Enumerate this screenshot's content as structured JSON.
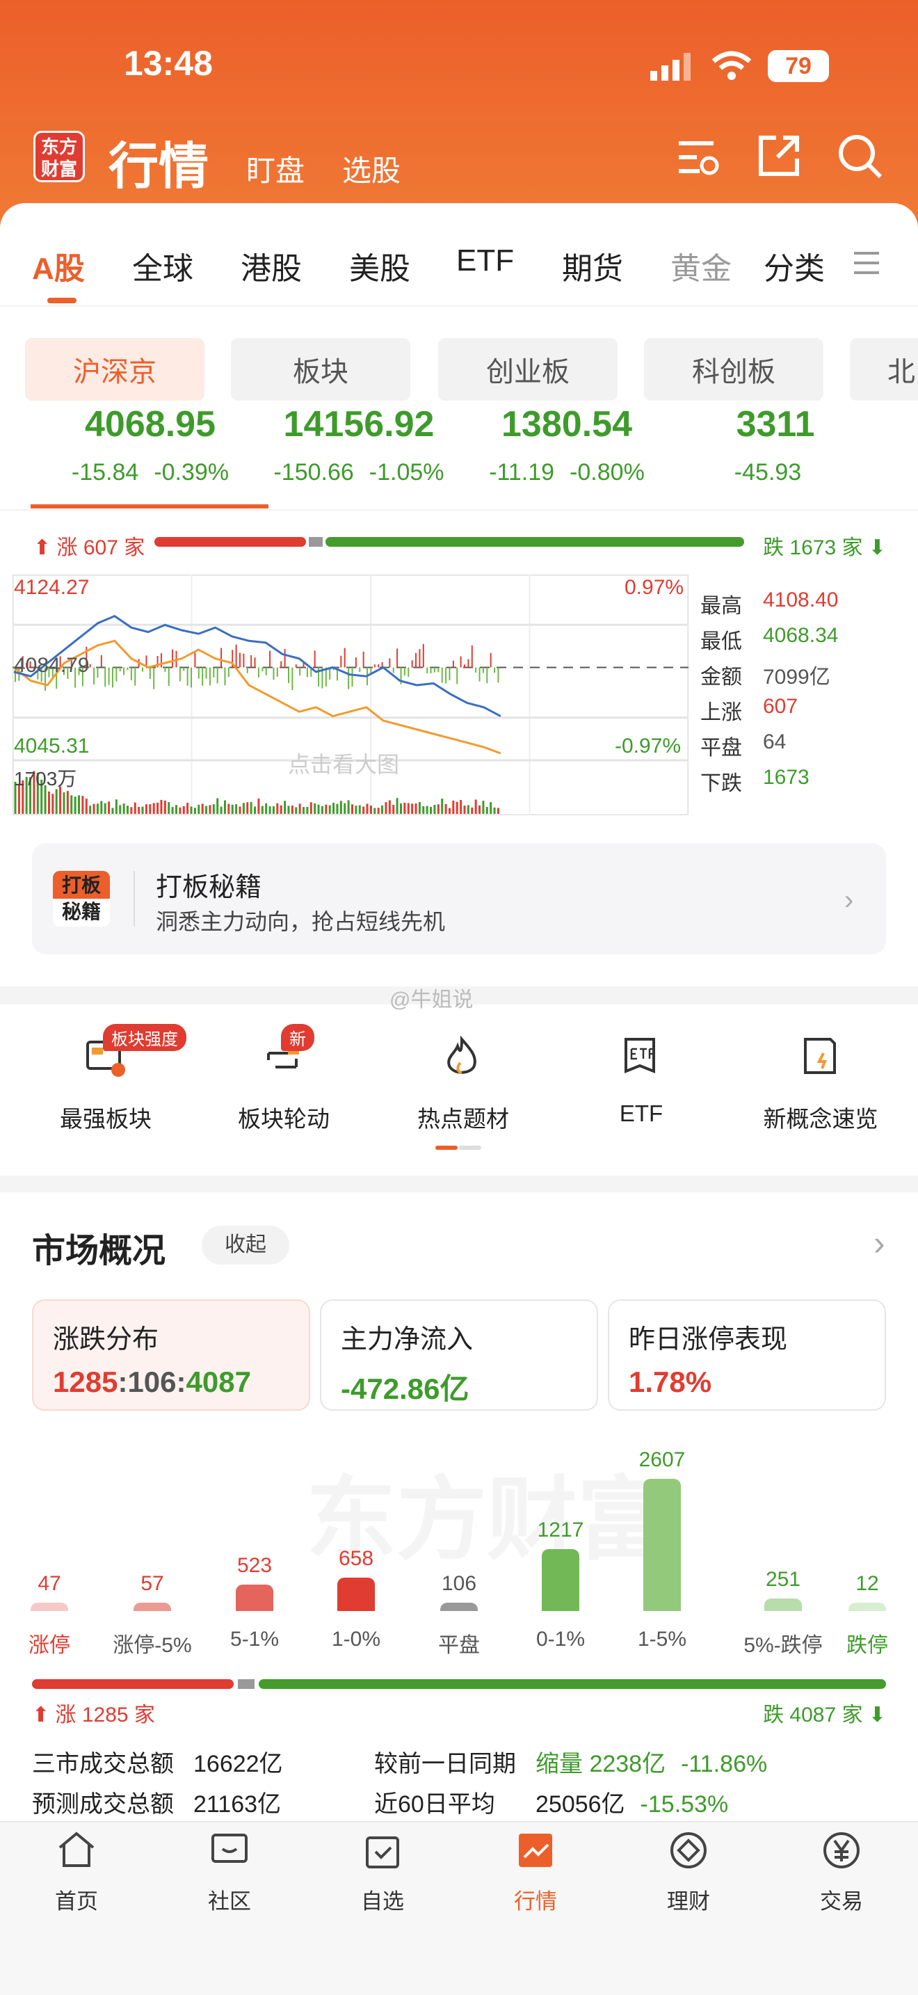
{
  "status": {
    "time": "13:48",
    "battery": "79"
  },
  "header": {
    "logo": "东方财富",
    "title": "行情",
    "tabs": [
      "盯盘",
      "选股"
    ]
  },
  "market_tabs": [
    "A股",
    "全球",
    "港股",
    "美股",
    "ETF",
    "期货",
    "黄金",
    "分类"
  ],
  "index_pills": [
    "沪深京",
    "板块",
    "创业板",
    "科创板",
    "北"
  ],
  "indices": [
    {
      "value": "4068.95",
      "change": "-15.84",
      "pct": "-0.39%"
    },
    {
      "value": "14156.92",
      "change": "-150.66",
      "pct": "-1.05%"
    },
    {
      "value": "1380.54",
      "change": "-11.19",
      "pct": "-0.80%"
    },
    {
      "value": "3311",
      "change": "-45.93",
      "pct": ""
    }
  ],
  "breadth": {
    "up": "涨 607 家",
    "down": "跌 1673 家",
    "up_n": 607,
    "flat_n": 64,
    "down_n": 1673
  },
  "intraday": {
    "high_label": "4124.27",
    "low_label": "4045.31",
    "prev_close": "4084.79",
    "pct_up": "0.97%",
    "pct_down": "-0.97%",
    "volume_label": "1703万",
    "watermark": "点击看大图",
    "index_pct": [
      -0.05,
      -0.1,
      0.05,
      0.2,
      0.35,
      0.5,
      0.58,
      0.45,
      0.4,
      0.48,
      0.42,
      0.38,
      0.45,
      0.35,
      0.3,
      0.28,
      0.15,
      0.1,
      -0.05,
      0,
      -0.08,
      -0.1,
      0,
      -0.15,
      -0.2,
      -0.18,
      -0.3,
      -0.4,
      -0.45,
      -0.55
    ],
    "equal_pct": [
      0,
      -0.15,
      -0.2,
      0.05,
      0.15,
      0.25,
      0.3,
      0.1,
      0,
      0.05,
      0.1,
      0.2,
      0.1,
      0.05,
      -0.2,
      -0.3,
      -0.4,
      -0.5,
      -0.45,
      -0.55,
      -0.5,
      -0.45,
      -0.6,
      -0.65,
      -0.7,
      -0.75,
      -0.8,
      -0.85,
      -0.9,
      -0.97
    ]
  },
  "stats": [
    {
      "label": "最高",
      "value": "4108.40",
      "color": "red"
    },
    {
      "label": "最低",
      "value": "4068.34",
      "color": "green"
    },
    {
      "label": "金额",
      "value": "7099亿",
      "color": "gray"
    },
    {
      "label": "上涨",
      "value": "607",
      "color": "red"
    },
    {
      "label": "平盘",
      "value": "64",
      "color": "gray"
    },
    {
      "label": "下跌",
      "value": "1673",
      "color": "green"
    }
  ],
  "promo": {
    "badge": "打板秘籍",
    "title": "打板秘籍",
    "subtitle": "洞悉主力动向，抢占短线先机"
  },
  "watermark": "@牛姐说",
  "shortcuts": [
    {
      "label": "最强板块",
      "badge": "板块强度"
    },
    {
      "label": "板块轮动",
      "badge": "新"
    },
    {
      "label": "热点题材"
    },
    {
      "label": "ETF",
      "icon_text": "ETF"
    },
    {
      "label": "新概念速览"
    }
  ],
  "overview": {
    "title": "市场概况",
    "collapse": "收起",
    "cards": [
      {
        "title": "涨跌分布",
        "value_up": "1285",
        "value_flat": "106",
        "value_down": "4087"
      },
      {
        "title": "主力净流入",
        "value": "-472.86亿"
      },
      {
        "title": "昨日涨停表现",
        "value": "1.78%"
      }
    ],
    "distribution": {
      "categories": [
        "涨停",
        "涨停-5%",
        "5-1%",
        "1-0%",
        "平盘",
        "0-1%",
        "1-5%",
        "5%-跌停",
        "跌停"
      ],
      "values": [
        47,
        57,
        523,
        658,
        106,
        1217,
        2607,
        251,
        12
      ],
      "colors": [
        "#f4c9c6",
        "#eb9a94",
        "#e5655c",
        "#e03c31",
        "#999999",
        "#72b857",
        "#93c97b",
        "#b8ddaa",
        "#d8eed0"
      ],
      "label_colors": [
        "#e03c31",
        "#555",
        "#555",
        "#555",
        "#555",
        "#555",
        "#555",
        "#555",
        "#3e9b2b"
      ],
      "value_colors": [
        "#e03c31",
        "#e03c31",
        "#e03c31",
        "#e03c31",
        "#555",
        "#3e9b2b",
        "#3e9b2b",
        "#3e9b2b",
        "#3e9b2b"
      ],
      "watermark": "东方财富"
    },
    "breadth": {
      "up": "涨 1285 家",
      "down": "跌 4087 家"
    },
    "turnover": [
      {
        "label": "三市成交总额",
        "value": "16622亿",
        "cmp_label": "较前一日同期",
        "cmp_value": "缩量 2238亿",
        "cmp_pct": "-11.86%"
      },
      {
        "label": "预测成交总额",
        "value": "21163亿",
        "cmp_label": "近60日平均",
        "cmp_value": "25056亿",
        "cmp_pct": "-15.53%"
      }
    ]
  },
  "bottom_nav": [
    {
      "label": "首页"
    },
    {
      "label": "社区"
    },
    {
      "label": "自选"
    },
    {
      "label": "行情",
      "active": true
    },
    {
      "label": "理财"
    },
    {
      "label": "交易"
    }
  ],
  "colors": {
    "brand": "#ec5f2a",
    "up": "#e03c31",
    "down": "#3e9b2b"
  }
}
